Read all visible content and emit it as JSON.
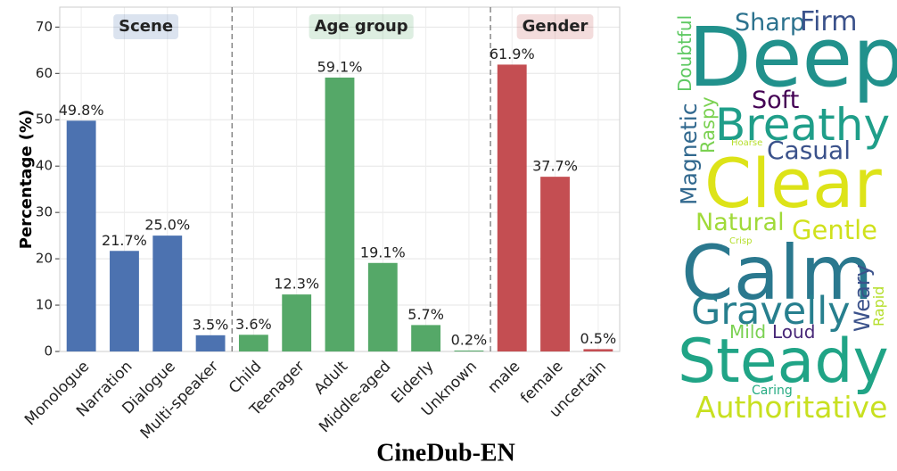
{
  "chart_data": {
    "type": "bar",
    "title": "CineDub-EN",
    "y_label": "Percentage (%)",
    "ylim": [
      0,
      74.3
    ],
    "yticks": [
      0,
      10,
      20,
      30,
      40,
      50,
      60,
      70
    ],
    "grid": true,
    "groups": [
      {
        "name": "Scene",
        "color": "#4c72b0",
        "categories": [
          "Monologue",
          "Narration",
          "Dialogue",
          "Multi-speaker"
        ],
        "values": [
          49.8,
          21.7,
          25.0,
          3.5
        ],
        "value_labels": [
          "49.8%",
          "21.7%",
          "25.0%",
          "3.5%"
        ]
      },
      {
        "name": "Age group",
        "color": "#55a868",
        "categories": [
          "Child",
          "Teenager",
          "Adult",
          "Middle-aged",
          "Elderly",
          "Unknown"
        ],
        "values": [
          3.6,
          12.3,
          59.1,
          19.1,
          5.7,
          0.2
        ],
        "value_labels": [
          "3.6%",
          "12.3%",
          "59.1%",
          "19.1%",
          "5.7%",
          "0.2%"
        ]
      },
      {
        "name": "Gender",
        "color": "#c44e52",
        "categories": [
          "male",
          "female",
          "uncertain"
        ],
        "values": [
          61.9,
          37.7,
          0.5
        ],
        "value_labels": [
          "61.9%",
          "37.7%",
          "0.5%"
        ]
      }
    ]
  },
  "wordcloud": {
    "words": [
      "Sharp",
      "Firm",
      "Deep",
      "Doubtful",
      "Soft",
      "Magnetic",
      "Raspy",
      "Breathy",
      "Hoarse",
      "Casual",
      "Clear",
      "Natural",
      "Gentle",
      "Crisp",
      "Calm",
      "Weary",
      "Rapid",
      "Gravelly",
      "Mild",
      "Loud",
      "Steady",
      "Caring",
      "Authoritative"
    ]
  }
}
